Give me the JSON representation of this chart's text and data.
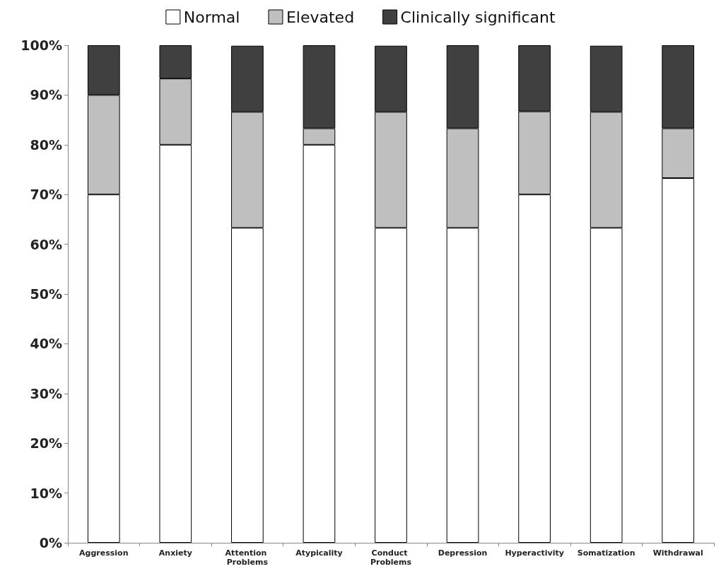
{
  "chart_data": {
    "type": "bar",
    "stacked": true,
    "categories": [
      "Aggression",
      "Anxiety",
      "Attention Problems",
      "Atypicality",
      "Conduct Problems",
      "Depression",
      "Hyperactivity",
      "Somatization",
      "Withdrawal"
    ],
    "series": [
      {
        "name": "Normal",
        "color": "#ffffff",
        "values": [
          70,
          80,
          63.3,
          80,
          63.3,
          63.3,
          70,
          63.3,
          73.3
        ]
      },
      {
        "name": "Elevated",
        "color": "#bfbfbf",
        "values": [
          20,
          13.3,
          23.3,
          3.3,
          23.3,
          20,
          16.7,
          23.3,
          10
        ]
      },
      {
        "name": "Clinically significant",
        "color": "#404040",
        "values": [
          10,
          6.7,
          13.3,
          16.7,
          13.3,
          16.7,
          13.3,
          13.3,
          16.7
        ]
      }
    ],
    "ylim": [
      0,
      100
    ],
    "yticks": [
      {
        "value": 0,
        "label": "0%"
      },
      {
        "value": 10,
        "label": "10%"
      },
      {
        "value": 20,
        "label": "20%"
      },
      {
        "value": 30,
        "label": "30%"
      },
      {
        "value": 40,
        "label": "40%"
      },
      {
        "value": 50,
        "label": "50%"
      },
      {
        "value": 60,
        "label": "60%"
      },
      {
        "value": 70,
        "label": "70%"
      },
      {
        "value": 80,
        "label": "80%"
      },
      {
        "value": 90,
        "label": "90%"
      },
      {
        "value": 100,
        "label": "100%"
      }
    ],
    "grid": false,
    "legend": "top"
  }
}
